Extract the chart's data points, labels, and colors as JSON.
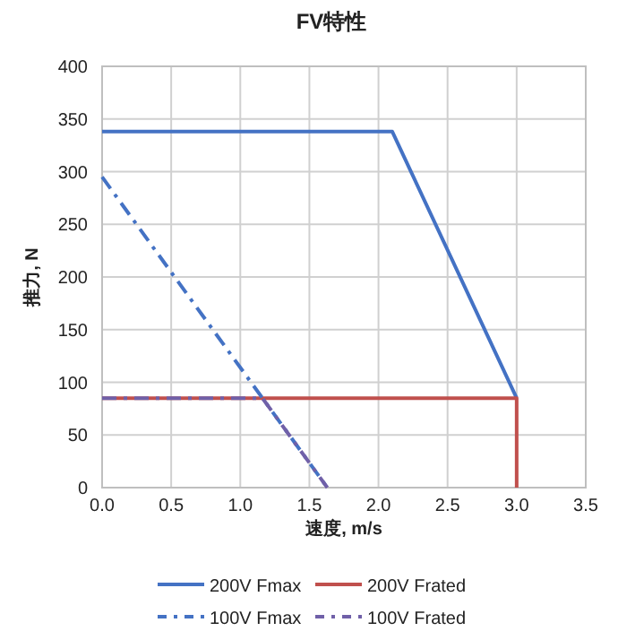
{
  "chart_data": {
    "type": "line",
    "title": "FV特性",
    "xlabel": "速度, m/s",
    "ylabel": "推力, N",
    "xlim": [
      0,
      3.5
    ],
    "ylim": [
      0,
      400
    ],
    "xticks": [
      {
        "value": 0,
        "label": "0.0"
      },
      {
        "value": 0.5,
        "label": "0.5"
      },
      {
        "value": 1,
        "label": "1.0"
      },
      {
        "value": 1.5,
        "label": "1.5"
      },
      {
        "value": 2,
        "label": "2.0"
      },
      {
        "value": 2.5,
        "label": "2.5"
      },
      {
        "value": 3,
        "label": "3.0"
      },
      {
        "value": 3.5,
        "label": "3.5"
      }
    ],
    "yticks": [
      0,
      50,
      100,
      150,
      200,
      250,
      300,
      350,
      400
    ],
    "grid": true,
    "legend": "bottom",
    "marker": "none",
    "series": [
      {
        "name": "200V Fmax",
        "color": "#4472c4",
        "line_style": "solid",
        "x": [
          0,
          2.1,
          3.0
        ],
        "values": [
          338,
          338,
          85
        ]
      },
      {
        "name": "200V Frated",
        "color": "#c0504d",
        "line_style": "solid",
        "x": [
          0,
          3.0,
          3.0
        ],
        "values": [
          85,
          85,
          0
        ]
      },
      {
        "name": "100V Fmax",
        "color": "#4472c4",
        "line_style": "dashdot",
        "x": [
          0,
          1.63
        ],
        "values": [
          295,
          0
        ]
      },
      {
        "name": "100V Frated",
        "color": "#7060a8",
        "line_style": "dashdot",
        "x": [
          0,
          1.16,
          1.63
        ],
        "values": [
          85,
          85,
          0
        ]
      }
    ]
  }
}
